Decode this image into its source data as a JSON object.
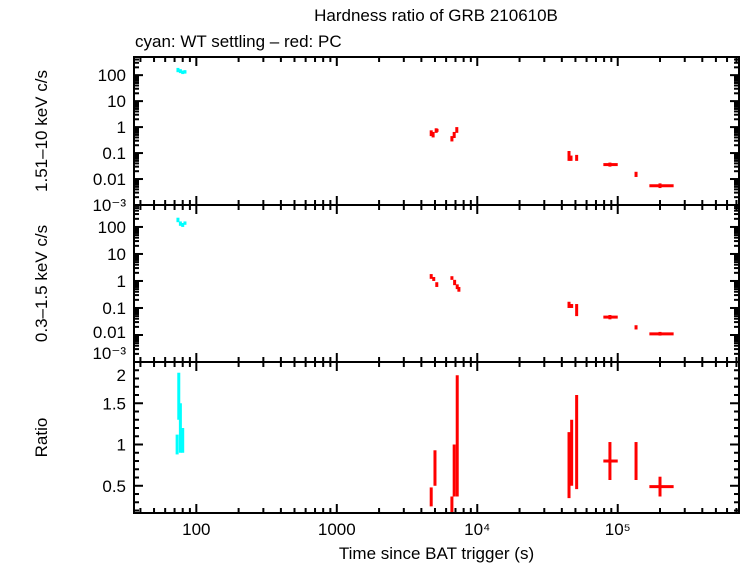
{
  "chart_data": {
    "type": "scatter",
    "title": "Hardness ratio of GRB 210610B",
    "subtitle": "cyan: WT settling – red: PC",
    "xlabel": "Time since BAT trigger (s)",
    "xscale": "log",
    "xlim": [
      36,
      730000
    ],
    "xticks": [
      100,
      1000,
      10000,
      100000
    ],
    "xtick_labels": [
      "100",
      "1000",
      "10⁴",
      "10⁵"
    ],
    "colors": {
      "WT settling": "#00ffff",
      "PC": "#ff0000",
      "axes": "#000000"
    },
    "point_format": [
      "x",
      "x_min",
      "x_max",
      "y",
      "y_min",
      "y_max"
    ],
    "panels": [
      {
        "ylabel": "1.51–10 keV c/s",
        "yscale": "log",
        "ylim": [
          0.001,
          500
        ],
        "yticks": [
          100,
          10,
          1,
          0.1,
          0.01,
          0.001
        ],
        "ytick_labels": [
          "100",
          "10",
          "1",
          "0.1",
          "0.01",
          "10⁻³"
        ],
        "series": [
          {
            "mode": "WT settling",
            "points": [
              [
                74,
                73,
                75,
                160,
                130,
                190
              ],
              [
                77,
                76,
                78,
                145,
                120,
                170
              ],
              [
                80,
                79,
                81,
                130,
                110,
                150
              ],
              [
                83,
                82,
                84,
                135,
                115,
                155
              ]
            ]
          },
          {
            "mode": "PC",
            "points": [
              [
                4700,
                4650,
                4750,
                0.6,
                0.45,
                0.75
              ],
              [
                4850,
                4800,
                4900,
                0.5,
                0.4,
                0.65
              ],
              [
                5100,
                5000,
                5300,
                0.75,
                0.6,
                0.9
              ],
              [
                6600,
                6550,
                6650,
                0.35,
                0.28,
                0.45
              ],
              [
                6850,
                6800,
                6900,
                0.5,
                0.38,
                0.65
              ],
              [
                7150,
                7100,
                7200,
                0.8,
                0.6,
                1.0
              ],
              [
                45000,
                44500,
                45500,
                0.08,
                0.05,
                0.12
              ],
              [
                46500,
                46000,
                47000,
                0.065,
                0.05,
                0.08
              ],
              [
                51000,
                50500,
                51500,
                0.065,
                0.05,
                0.085
              ],
              [
                88000,
                79000,
                100000,
                0.036,
                0.03,
                0.043
              ],
              [
                135000,
                133000,
                137000,
                0.015,
                0.012,
                0.019
              ],
              [
                200000,
                168000,
                250000,
                0.0055,
                0.0045,
                0.0068
              ]
            ]
          }
        ]
      },
      {
        "ylabel": "0.3–1.5 keV c/s",
        "yscale": "log",
        "ylim": [
          0.001,
          650
        ],
        "yticks": [
          100,
          10,
          1,
          0.1,
          0.01,
          0.001
        ],
        "ytick_labels": [
          "100",
          "10",
          "1",
          "0.1",
          "0.01",
          "10⁻³"
        ],
        "series": [
          {
            "mode": "WT settling",
            "points": [
              [
                74,
                73,
                75,
                180,
                150,
                220
              ],
              [
                77,
                76,
                78,
                135,
                110,
                160
              ],
              [
                80,
                79,
                81,
                120,
                100,
                140
              ],
              [
                83,
                82,
                84,
                140,
                120,
                160
              ]
            ]
          },
          {
            "mode": "PC",
            "points": [
              [
                4700,
                4650,
                4750,
                1.5,
                1.2,
                1.8
              ],
              [
                4900,
                4850,
                4950,
                1.2,
                1.0,
                1.4
              ],
              [
                5150,
                5100,
                5200,
                0.75,
                0.6,
                0.9
              ],
              [
                6600,
                6550,
                6650,
                1.3,
                1.1,
                1.5
              ],
              [
                6900,
                6850,
                6950,
                0.9,
                0.7,
                1.1
              ],
              [
                7200,
                7150,
                7250,
                0.6,
                0.5,
                0.75
              ],
              [
                7400,
                7350,
                7450,
                0.5,
                0.4,
                0.6
              ],
              [
                45000,
                44500,
                45500,
                0.14,
                0.1,
                0.17
              ],
              [
                47000,
                46500,
                47500,
                0.12,
                0.1,
                0.14
              ],
              [
                51000,
                50500,
                51500,
                0.07,
                0.05,
                0.14
              ],
              [
                88000,
                79000,
                100000,
                0.046,
                0.038,
                0.055
              ],
              [
                135000,
                133000,
                137000,
                0.019,
                0.016,
                0.023
              ],
              [
                200000,
                168000,
                250000,
                0.011,
                0.0095,
                0.013
              ]
            ]
          }
        ]
      },
      {
        "ylabel": "Ratio",
        "yscale": "linear",
        "ylim": [
          0.17,
          2
        ],
        "yticks": [
          2,
          1.5,
          1,
          0.5
        ],
        "ytick_labels": [
          "2",
          "1.5",
          "1",
          "0.5"
        ],
        "series": [
          {
            "mode": "WT settling",
            "points": [
              [
                73,
                72.5,
                73.5,
                1.0,
                0.88,
                1.12
              ],
              [
                75,
                74.5,
                75.5,
                1.6,
                1.3,
                1.87
              ],
              [
                77,
                76.5,
                77.5,
                1.2,
                0.9,
                1.5
              ],
              [
                80,
                79.5,
                80.5,
                1.05,
                0.9,
                1.2
              ]
            ]
          },
          {
            "mode": "PC",
            "points": [
              [
                4700,
                4650,
                4750,
                0.35,
                0.25,
                0.48
              ],
              [
                5000,
                4950,
                5050,
                0.72,
                0.5,
                0.93
              ],
              [
                6600,
                6550,
                6650,
                0.3,
                0.18,
                0.37
              ],
              [
                6850,
                6800,
                6900,
                0.65,
                0.37,
                1.0
              ],
              [
                7200,
                7150,
                7250,
                1.43,
                0.37,
                1.84
              ],
              [
                45000,
                44500,
                45500,
                0.55,
                0.35,
                1.15
              ],
              [
                47000,
                46500,
                47500,
                0.9,
                0.5,
                1.3
              ],
              [
                51000,
                50500,
                51500,
                0.93,
                0.46,
                1.6
              ],
              [
                88000,
                79000,
                100000,
                0.8,
                0.57,
                1.03
              ],
              [
                135000,
                133000,
                137000,
                0.8,
                0.57,
                1.03
              ],
              [
                200000,
                168000,
                250000,
                0.49,
                0.37,
                0.61
              ]
            ]
          }
        ]
      }
    ]
  }
}
